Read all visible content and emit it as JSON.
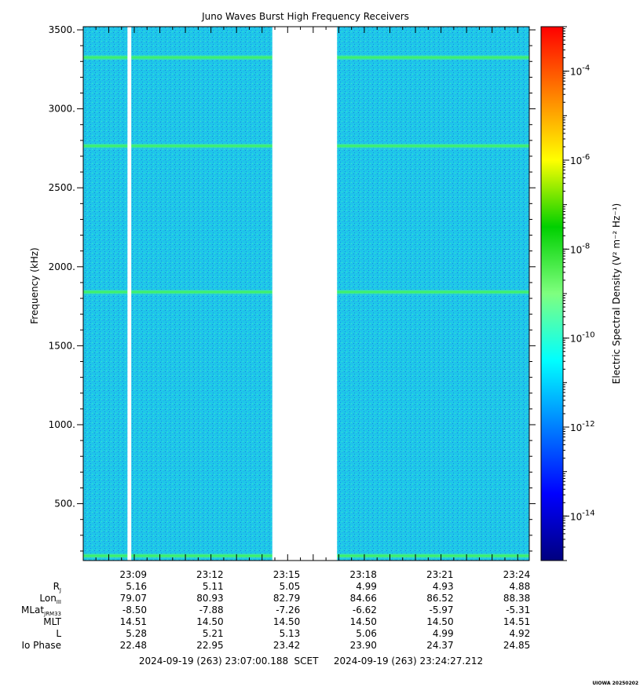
{
  "chart_data": {
    "type": "heatmap",
    "title": "Juno Waves Burst High Frequency Receivers",
    "ylabel": "Frequency (kHz)",
    "ylim": [
      140,
      3520
    ],
    "yticks": [
      500,
      1000,
      1500,
      2000,
      2500,
      3000,
      3500
    ],
    "ytick_labels": [
      "500.",
      "1000.",
      "1500.",
      "2000.",
      "2500.",
      "3000.",
      "3500."
    ],
    "x_range_seconds": [
      0,
      1047.024
    ],
    "xtick_labels": [
      "23:09",
      "23:12",
      "23:15",
      "23:18",
      "23:21",
      "23:24"
    ],
    "data_gaps": [
      {
        "from": "23:08:44",
        "to": "23:08:53"
      },
      {
        "from": "23:14:24",
        "to": "23:16:56"
      }
    ],
    "emission_lines_khz": [
      170,
      1840,
      2765,
      3325
    ],
    "background_level": "1e-12",
    "colorbar": {
      "label": "Electric Spectral Density (V² m⁻² Hz⁻¹)",
      "scale": "log",
      "range_exponent": [
        -15,
        -3
      ],
      "tick_exponents": [
        -4,
        -6,
        -8,
        -10,
        -12,
        -14
      ],
      "tick_base": "10",
      "colors": [
        "#00007f",
        "#0000ff",
        "#007fff",
        "#00ffff",
        "#7fff7f",
        "#00d000",
        "#ffff00",
        "#ff7f00",
        "#ff0000"
      ]
    }
  },
  "ephemeris": {
    "row_labels": [
      "RJ",
      "LonIII",
      "MLatJRM33",
      "MLT",
      "L",
      "Io Phase"
    ],
    "columns": [
      {
        "time": "23:09",
        "values": [
          "5.16",
          "79.07",
          "-8.50",
          "14.51",
          "5.28",
          "22.48"
        ]
      },
      {
        "time": "23:12",
        "values": [
          "5.11",
          "80.93",
          "-7.88",
          "14.50",
          "5.21",
          "22.95"
        ]
      },
      {
        "time": "23:15",
        "values": [
          "5.05",
          "82.79",
          "-7.26",
          "14.50",
          "5.13",
          "23.42"
        ]
      },
      {
        "time": "23:18",
        "values": [
          "4.99",
          "84.66",
          "-6.62",
          "14.50",
          "5.06",
          "23.90"
        ]
      },
      {
        "time": "23:21",
        "values": [
          "4.93",
          "86.52",
          "-5.97",
          "14.50",
          "4.99",
          "24.37"
        ]
      },
      {
        "time": "23:24",
        "values": [
          "4.88",
          "88.38",
          "-5.31",
          "14.51",
          "4.92",
          "24.85"
        ]
      }
    ]
  },
  "footer": {
    "start": "2024-09-19 (263) 23:07:00.188",
    "scet": "SCET",
    "end": "2024-09-19 (263) 23:24:27.212",
    "stamp": "UIOWA 20250202"
  }
}
